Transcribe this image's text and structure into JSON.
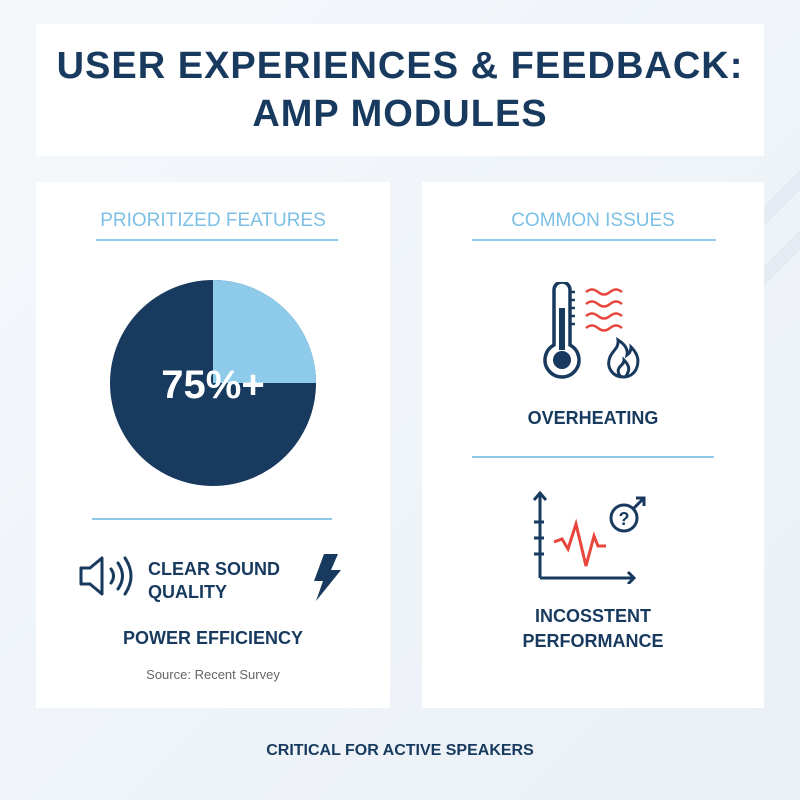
{
  "header": {
    "title_line1": "USER EXPERIENCES & FEEDBACK:",
    "title_line2": "AMP MODULES"
  },
  "left": {
    "heading": "PRIORITIZED FEATURES",
    "pie_label": "75%+",
    "pie_dark_percent": 75,
    "pie_light_percent": 25,
    "feature1": "CLEAR SOUND",
    "feature1_line2": "QUALITY",
    "feature2": "POWER EFFICIENCY",
    "source": "Source: Recent Survey",
    "icons": [
      "speaker-icon",
      "lightning-bolt-icon"
    ]
  },
  "right": {
    "heading": "COMMON ISSUES",
    "issue1": "OVERHEATING",
    "issue2_line1": "INCOSSTENT",
    "issue2_line2": "PERFORMANCE",
    "icons": [
      "thermometer-icon",
      "heat-waves-icon",
      "flame-icon",
      "erratic-graph-icon",
      "question-icon"
    ]
  },
  "footer": "CRITICAL FOR ACTIVE SPEAKERS",
  "colors": {
    "navy": "#173a5e",
    "light_blue": "#8ecbeb",
    "red": "#e8453c"
  }
}
